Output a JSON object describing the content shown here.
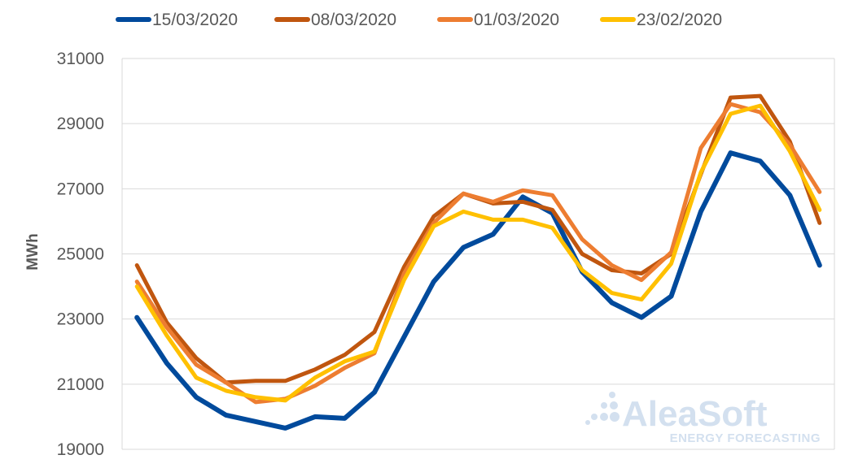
{
  "chart_data": {
    "type": "line",
    "title": "",
    "xlabel": "",
    "ylabel": "MWh",
    "ylim": [
      19000,
      31000
    ],
    "yticks": [
      "19000",
      "21000",
      "23000",
      "25000",
      "27000",
      "29000",
      "31000"
    ],
    "x": [
      1,
      2,
      3,
      4,
      5,
      6,
      7,
      8,
      9,
      10,
      11,
      12,
      13,
      14,
      15,
      16,
      17,
      18,
      19,
      20,
      21,
      22,
      23,
      24
    ],
    "grid": true,
    "legend_position": "top",
    "series": [
      {
        "name": "15/03/2020",
        "color": "#004a9c",
        "values": [
          23050,
          21650,
          20600,
          20050,
          19850,
          19650,
          20000,
          19950,
          20750,
          22450,
          24150,
          25200,
          25600,
          26750,
          26250,
          24450,
          23500,
          23050,
          23700,
          26300,
          28100,
          27850,
          26800,
          24650
        ]
      },
      {
        "name": "08/03/2020",
        "color": "#c0560f",
        "values": [
          24650,
          22900,
          21800,
          21050,
          21100,
          21100,
          21450,
          21900,
          22600,
          24600,
          26150,
          26850,
          26550,
          26600,
          26350,
          25000,
          24500,
          24400,
          25000,
          27450,
          29800,
          29850,
          28450,
          25950
        ]
      },
      {
        "name": "01/03/2020",
        "color": "#ed7d31",
        "values": [
          24150,
          22750,
          21600,
          21050,
          20450,
          20550,
          20950,
          21500,
          21950,
          24400,
          25950,
          26850,
          26600,
          26950,
          26800,
          25450,
          24650,
          24200,
          25050,
          28250,
          29600,
          29350,
          28350,
          26900
        ]
      },
      {
        "name": "23/02/2020",
        "color": "#ffc000",
        "values": [
          24000,
          22500,
          21200,
          20800,
          20600,
          20500,
          21200,
          21700,
          22000,
          24200,
          25850,
          26300,
          26050,
          26050,
          25800,
          24500,
          23800,
          23600,
          24700,
          27500,
          29300,
          29550,
          28150,
          26350
        ]
      }
    ]
  },
  "watermark": {
    "brand": "AleaSoft",
    "tagline": "ENERGY FORECASTING"
  }
}
